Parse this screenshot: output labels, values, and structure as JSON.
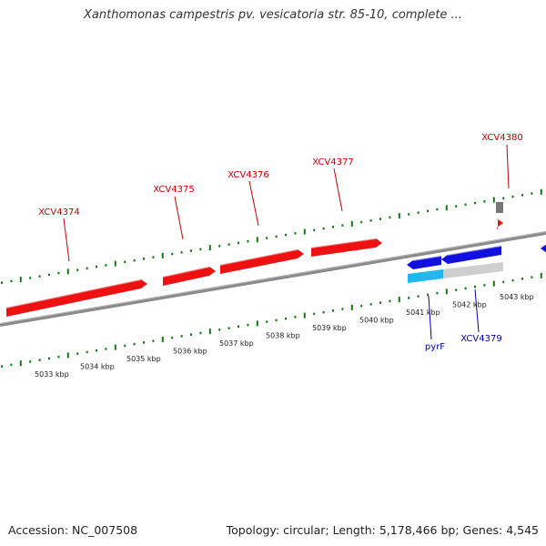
{
  "title": "Xanthomonas campestris pv. vesicatoria str. 85-10, complete ...",
  "footer": {
    "accession": "Accession: NC_007508",
    "stats": "Topology: circular; Length: 5,178,466 bp; Genes: 4,545"
  },
  "colors": {
    "forward_gene": "#ee1111",
    "reverse_gene": "#1111dd",
    "forward_label": "#cc0000",
    "reverse_label": "#0000aa",
    "tick": "#117711",
    "backbone": "#888888",
    "gray_feature": "#777777",
    "light_feature": "#cfcfcf",
    "cyan_feature": "#22b8ee"
  },
  "ticks": [
    "5033 kbp",
    "5034 kbp",
    "5035 kbp",
    "5036 kbp",
    "5037 kbp",
    "5038 kbp",
    "5039 kbp",
    "5040 kbp",
    "5041 kbp",
    "5042 kbp",
    "5043 kbp"
  ],
  "genes": [
    {
      "name": "XCV4374",
      "strand": "forward"
    },
    {
      "name": "XCV4375",
      "strand": "forward"
    },
    {
      "name": "XCV4376",
      "strand": "forward"
    },
    {
      "name": "XCV4377",
      "strand": "forward"
    },
    {
      "name": "XCV4380",
      "strand": "forward"
    },
    {
      "name": "pyrF",
      "strand": "reverse"
    },
    {
      "name": "XCV4379",
      "strand": "reverse"
    }
  ]
}
